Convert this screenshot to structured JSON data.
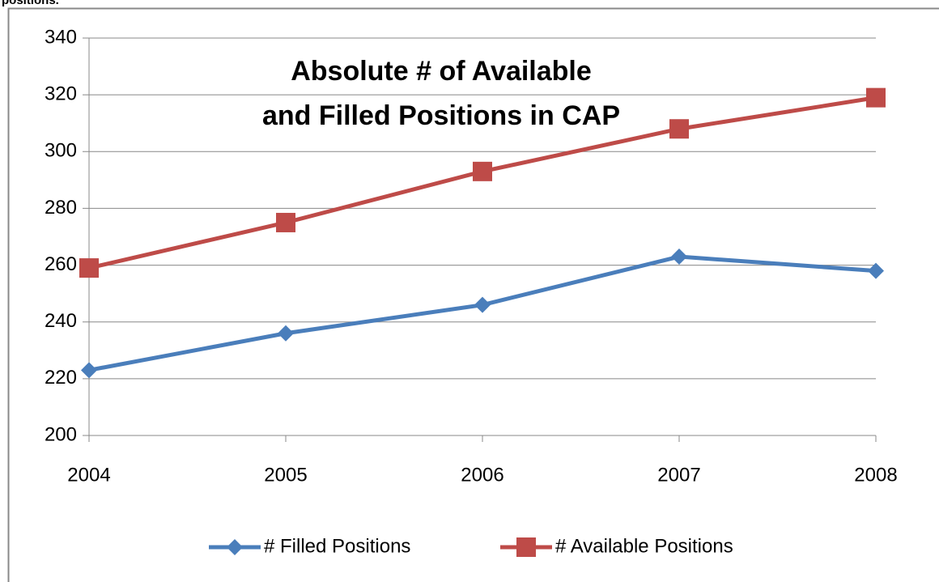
{
  "caption": "positions.",
  "chart_data": {
    "type": "line",
    "title": [
      "Absolute # of Available",
      "and Filled Positions in CAP"
    ],
    "categories": [
      "2004",
      "2005",
      "2006",
      "2007",
      "2008"
    ],
    "series": [
      {
        "name": "# Filled Positions",
        "color": "#4a7ebb",
        "marker": "diamond",
        "values": [
          223,
          236,
          246,
          263,
          258
        ]
      },
      {
        "name": "# Available Positions",
        "color": "#be4b48",
        "marker": "square",
        "values": [
          259,
          275,
          293,
          308,
          319
        ]
      }
    ],
    "ylim": [
      200,
      340
    ],
    "yticks": [
      200,
      220,
      240,
      260,
      280,
      300,
      320,
      340
    ],
    "grid": true,
    "legend": "bottom"
  }
}
